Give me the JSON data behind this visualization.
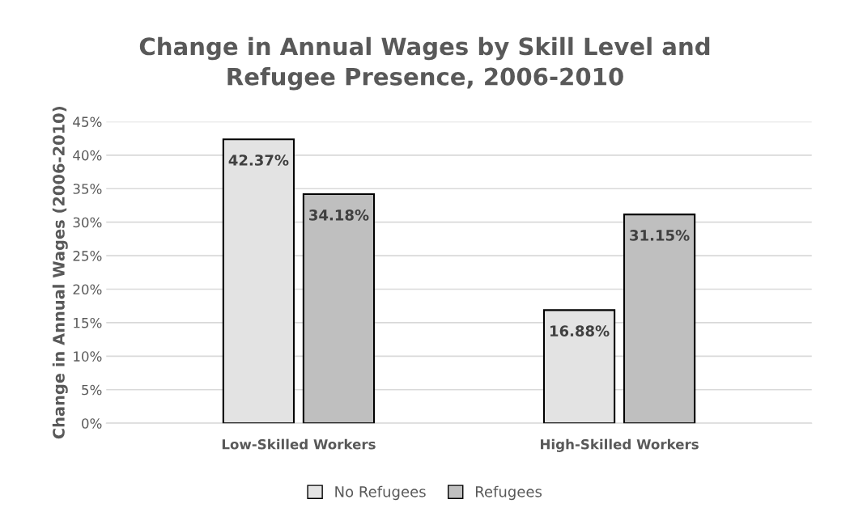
{
  "chart_data": {
    "type": "bar",
    "title": "Change in Annual Wages by Skill Level and\nRefugee Presence, 2006-2010",
    "ylabel": "Change in Annual Wages (2006-2010)",
    "categories": [
      "Low-Skilled Workers",
      "High-Skilled Workers"
    ],
    "series": [
      {
        "name": "No Refugees",
        "color": "#e3e3e3",
        "values": [
          42.37,
          16.88
        ],
        "value_labels": [
          "42.37%",
          "16.88%"
        ]
      },
      {
        "name": "Refugees",
        "color": "#bfbfbf",
        "values": [
          34.18,
          31.15
        ],
        "value_labels": [
          "34.18%",
          "31.15%"
        ]
      }
    ],
    "ylim": [
      0,
      45
    ],
    "yticks": [
      {
        "value": 0,
        "label": "0%"
      },
      {
        "value": 5,
        "label": "5%"
      },
      {
        "value": 10,
        "label": "10%"
      },
      {
        "value": 15,
        "label": "15%"
      },
      {
        "value": 20,
        "label": "20%"
      },
      {
        "value": 25,
        "label": "25%"
      },
      {
        "value": 30,
        "label": "30%"
      },
      {
        "value": 35,
        "label": "35%"
      },
      {
        "value": 40,
        "label": "40%"
      },
      {
        "value": 45,
        "label": "45%"
      }
    ],
    "grid": "y",
    "legend": "bottom"
  }
}
